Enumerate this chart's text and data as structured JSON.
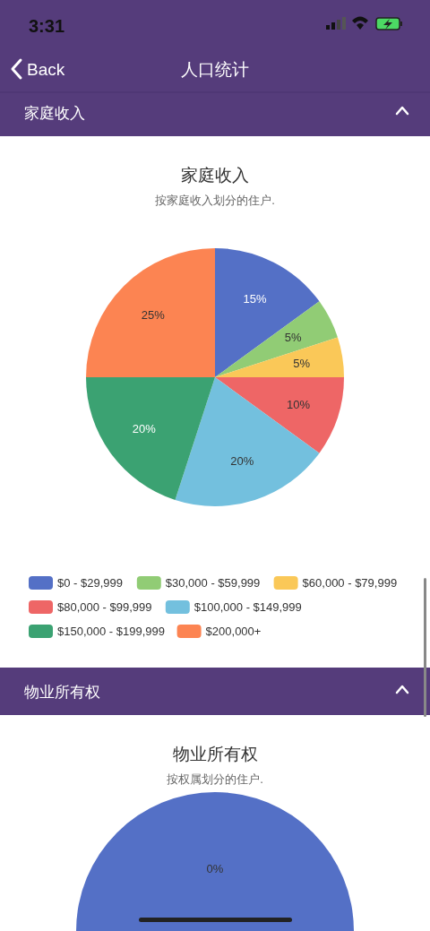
{
  "chart_data": [
    {
      "type": "pie",
      "title": "家庭收入",
      "subtitle": "按家庭收入划分的住户.",
      "categories": [
        "$0 - $29,999",
        "$30,000 - $59,999",
        "$60,000 - $79,999",
        "$80,000 - $99,999",
        "$100,000 - $149,999",
        "$150,000 - $199,999",
        "$200,000+"
      ],
      "values": [
        15,
        5,
        5,
        10,
        20,
        20,
        25
      ],
      "colors": [
        "#5470c6",
        "#91cc75",
        "#fac858",
        "#ee6666",
        "#73c0de",
        "#3ba272",
        "#fc8452"
      ],
      "value_labels": [
        "15%",
        "5%",
        "5%",
        "10%",
        "20%",
        "20%",
        "25%"
      ],
      "legend": "bottom",
      "annotations": [
        "3:31",
        "Back",
        "人口统计",
        "家庭收入"
      ]
    },
    {
      "type": "other",
      "title": "物业所有权",
      "subtitle": "按权属划分的住户.",
      "annotations": [
        "物业所有权",
        "0%"
      ]
    }
  ]
}
